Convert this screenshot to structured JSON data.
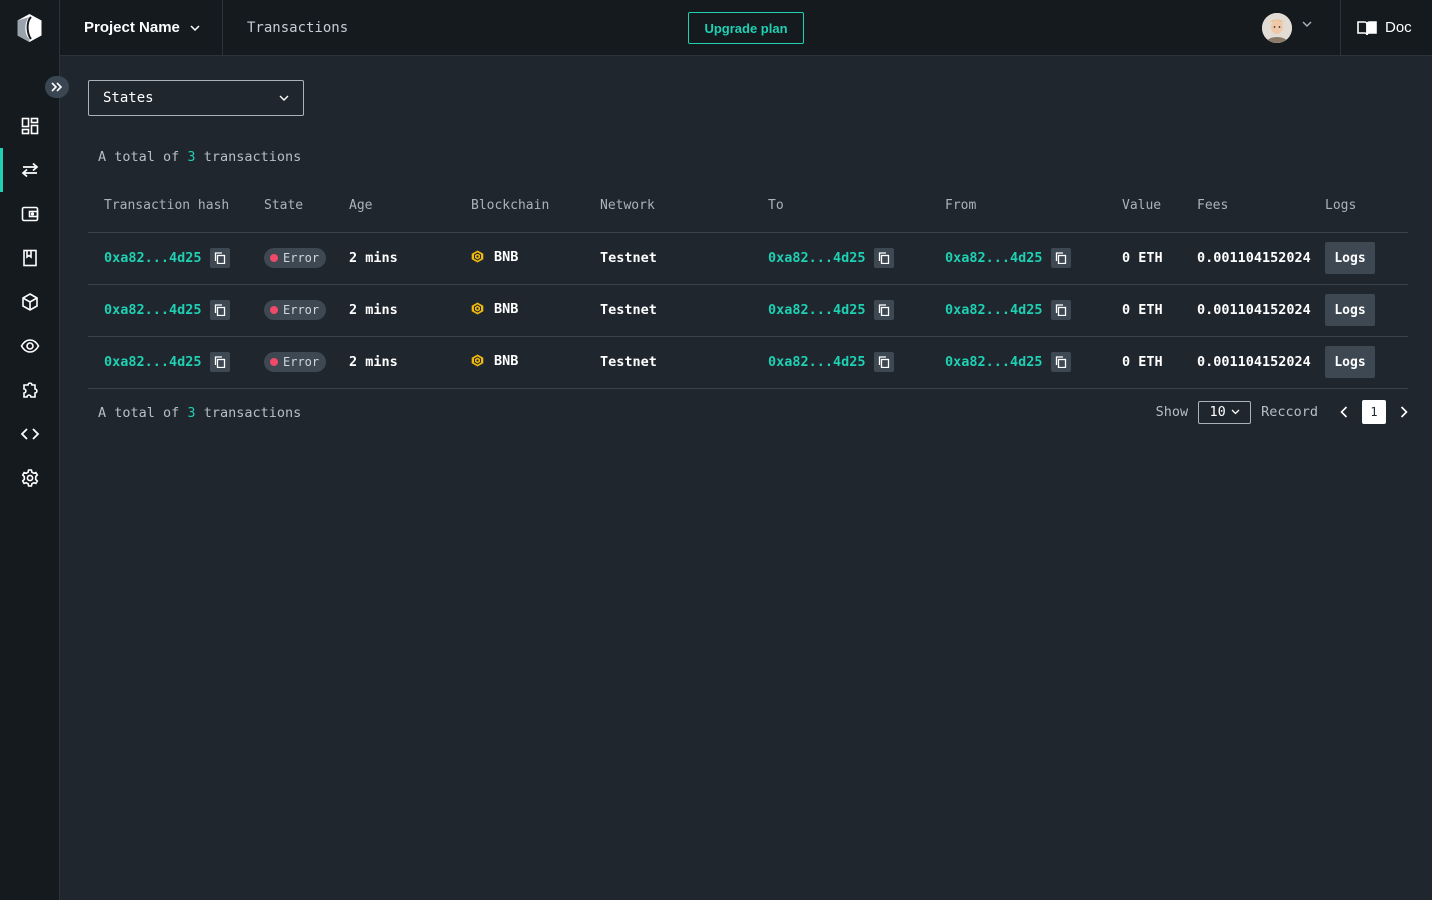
{
  "header": {
    "project_name": "Project Name",
    "page_title": "Transactions",
    "upgrade_label": "Upgrade plan",
    "doc_label": "Doc"
  },
  "sidebar": {
    "items": [
      {
        "icon": "dashboard-icon",
        "active": false
      },
      {
        "icon": "transactions-icon",
        "active": true
      },
      {
        "icon": "wallet-icon",
        "active": false
      },
      {
        "icon": "bookmark-icon",
        "active": false
      },
      {
        "icon": "cube-icon",
        "active": false
      },
      {
        "icon": "eye-icon",
        "active": false
      },
      {
        "icon": "puzzle-icon",
        "active": false
      },
      {
        "icon": "code-icon",
        "active": false
      },
      {
        "icon": "gear-icon",
        "active": false
      }
    ]
  },
  "filter": {
    "states_label": "States"
  },
  "summary": {
    "prefix": "A total of",
    "count": "3",
    "suffix": "transactions"
  },
  "table": {
    "columns": [
      "Transaction hash",
      "State",
      "Age",
      "Blockchain",
      "Network",
      "To",
      "From",
      "Value",
      "Fees",
      "Logs"
    ],
    "rows": [
      {
        "hash": "0xa82...4d25",
        "state": "Error",
        "age": "2 mins",
        "blockchain": "BNB",
        "network": "Testnet",
        "to": "0xa82...4d25",
        "from": "0xa82...4d25",
        "value": "0 ETH",
        "fees": "0.001104152024",
        "logs": "Logs"
      },
      {
        "hash": "0xa82...4d25",
        "state": "Error",
        "age": "2 mins",
        "blockchain": "BNB",
        "network": "Testnet",
        "to": "0xa82...4d25",
        "from": "0xa82...4d25",
        "value": "0 ETH",
        "fees": "0.001104152024",
        "logs": "Logs"
      },
      {
        "hash": "0xa82...4d25",
        "state": "Error",
        "age": "2 mins",
        "blockchain": "BNB",
        "network": "Testnet",
        "to": "0xa82...4d25",
        "from": "0xa82...4d25",
        "value": "0 ETH",
        "fees": "0.001104152024",
        "logs": "Logs"
      }
    ]
  },
  "pagination": {
    "show_label": "Show",
    "page_size": "10",
    "record_label": "Reccord",
    "current_page": "1"
  },
  "colors": {
    "accent": "#1fd0b3",
    "error": "#f04a66",
    "bnb": "#f0b90b"
  }
}
